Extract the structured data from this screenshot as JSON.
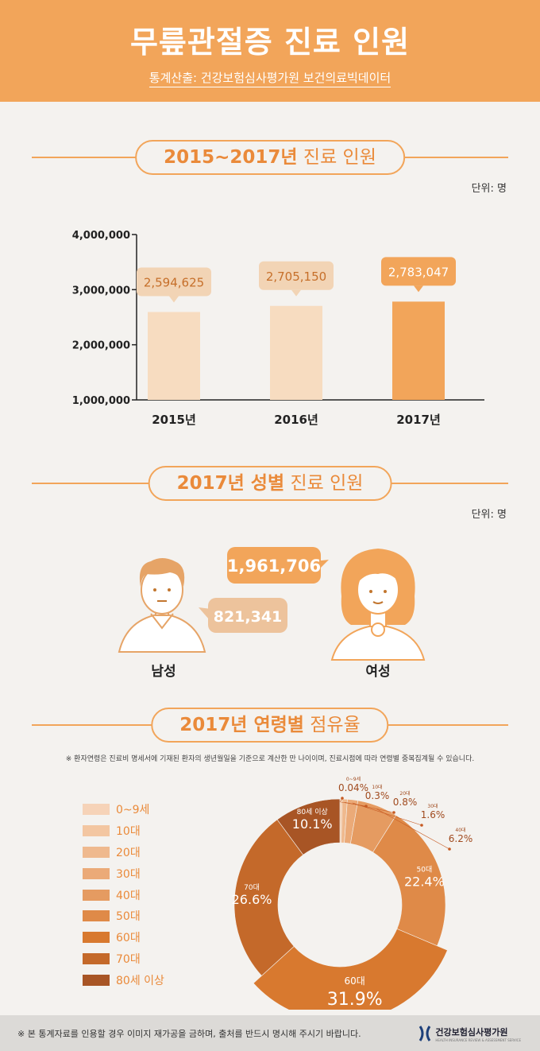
{
  "header": {
    "title": "무릎관절증 진료 인원",
    "subtitle": "통계산출: 건강보험심사평가원 보건의료빅데이터"
  },
  "section1": {
    "title_bold": "2015~2017년",
    "title_rest": "진료 인원",
    "unit": "단위: 명"
  },
  "section2": {
    "title_bold": "2017년 성별",
    "title_rest": "진료 인원",
    "unit": "단위: 명",
    "male_label": "남성",
    "female_label": "여성",
    "male_value": "821,341",
    "female_value": "1,961,706"
  },
  "section3": {
    "title_bold": "2017년 연령별",
    "title_rest": "점유율",
    "note": "※ 환자연령은 진료비 명세서에 기재된 환자의 생년월일을 기준으로 계산한 만 나이이며, 진료시점에 따라 연령별 중복집계될 수 있습니다."
  },
  "colors": {
    "accent": "#f2a55a",
    "title_orange": "#ea8a3a",
    "bar_light": "#f7dcc0",
    "bar_highlight": "#f2a55a"
  },
  "chart_data": [
    {
      "type": "bar",
      "categories": [
        "2015년",
        "2016년",
        "2017년"
      ],
      "values": [
        2594625,
        2705150,
        2783047
      ],
      "value_labels": [
        "2,594,625",
        "2,705,150",
        "2,783,047"
      ],
      "y_ticks": [
        "1,000,000",
        "2,000,000",
        "3,000,000",
        "4,000,000"
      ],
      "ylim": [
        1000000,
        4000000
      ],
      "grid": false
    },
    {
      "type": "pie",
      "categories": [
        "0~9세",
        "10대",
        "20대",
        "30대",
        "40대",
        "50대",
        "60대",
        "70대",
        "80세 이상"
      ],
      "values": [
        0.04,
        0.3,
        0.8,
        1.6,
        6.2,
        22.4,
        31.9,
        26.6,
        10.1
      ],
      "labels": [
        "0.04%",
        "0.3%",
        "0.8%",
        "1.6%",
        "6.2%",
        "22.4%",
        "31.9%",
        "26.6%",
        "10.1%"
      ],
      "slice_names": [
        "0~9세",
        "10대",
        "20대",
        "30대",
        "40대",
        "50대",
        "60대",
        "70대",
        "80세 이상"
      ],
      "colors": [
        "#f6d3b8",
        "#f3c6a1",
        "#efb98e",
        "#ebaa78",
        "#e59b61",
        "#df8a48",
        "#d8792f",
        "#c4692a",
        "#a85525"
      ],
      "legend_position": "left"
    }
  ],
  "footer": {
    "text": "※ 본 통계자료를 인용할 경우 이미지 재가공을 금하며, 출처를 반드시 명시해 주시기 바랍니다.",
    "logo_text": "건강보험심사평가원",
    "logo_subtext": "HEALTH INSURANCE REVIEW & ASSESSMENT SERVICE"
  }
}
